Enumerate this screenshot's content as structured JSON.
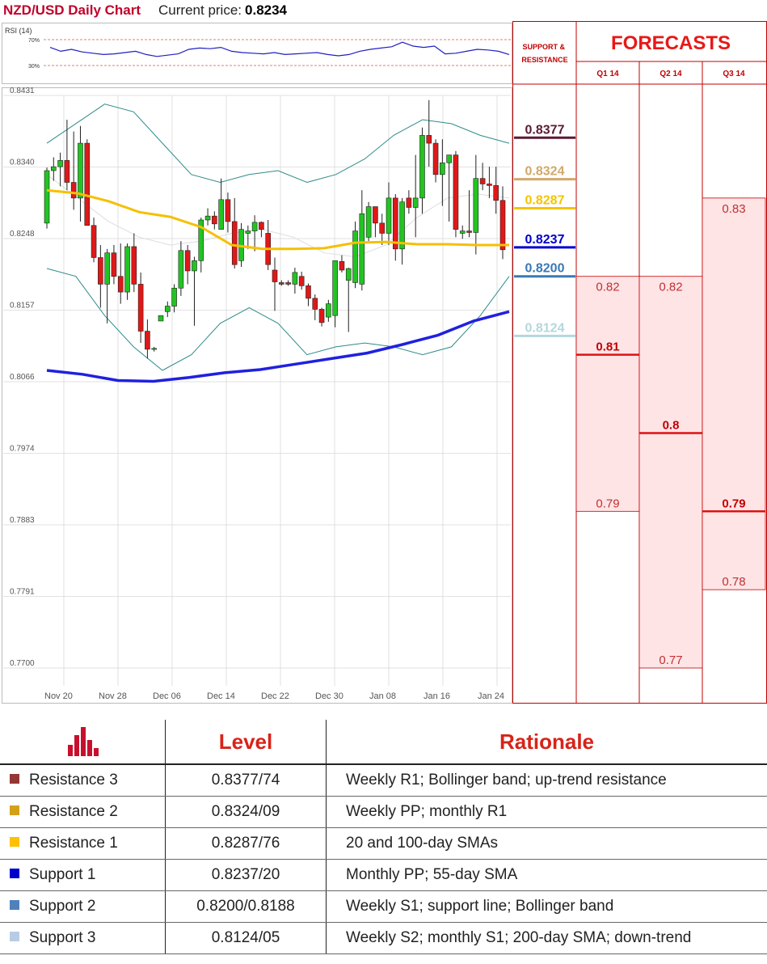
{
  "header": {
    "title": "NZD/USD Daily Chart",
    "price_label": "Current price:",
    "price_value": "0.8234"
  },
  "rsi": {
    "label": "RSI (14)",
    "upper_label": "70%",
    "lower_label": "30%"
  },
  "forecasts": {
    "title": "FORECASTS",
    "sr_label": "SUPPORT & RESISTANCE",
    "quarters": [
      "Q1 14",
      "Q2 14",
      "Q3 14"
    ]
  },
  "levels_table": {
    "icon": "bar-chart-icon",
    "headers": {
      "level": "Level",
      "rationale": "Rationale"
    },
    "rows": [
      {
        "name": "Resistance 3",
        "level": "0.8377/74",
        "rationale": "Weekly R1; Bollinger band; up-trend resistance",
        "color": "#943634"
      },
      {
        "name": "Resistance 2",
        "level": "0.8324/09",
        "rationale": "Weekly PP; monthly R1",
        "color": "#d4a017"
      },
      {
        "name": "Resistance 1",
        "level": "0.8287/76",
        "rationale": "20 and 100-day SMAs",
        "color": "#ffc000"
      },
      {
        "name": "Support 1",
        "level": "0.8237/20",
        "rationale": "Monthly PP; 55-day SMA",
        "color": "#0000cc"
      },
      {
        "name": "Support 2",
        "level": "0.8200/0.8188",
        "rationale": "Weekly S1; support line; Bollinger band",
        "color": "#4f81bd"
      },
      {
        "name": "Support 3",
        "level": "0.8124/05",
        "rationale": "Weekly S2; monthly S1; 200-day SMA; down-trend",
        "color": "#b8cce4"
      }
    ]
  },
  "chart_data": [
    {
      "type": "candlestick",
      "title": "NZD/USD Daily Chart",
      "ylim": [
        0.77,
        0.8431
      ],
      "yticks": [
        "0.8431",
        "0.8340",
        "0.8248",
        "0.8157",
        "0.8066",
        "0.7974",
        "0.7883",
        "0.7791",
        "0.7700"
      ],
      "xticks": [
        "Nov 20",
        "Nov 28",
        "Dec 06",
        "Dec 14",
        "Dec 22",
        "Dec 30",
        "Jan 08",
        "Jan 16",
        "Jan 24"
      ],
      "grid": true,
      "candles": [
        [
          0.8268,
          0.8339,
          0.8261,
          0.8335
        ],
        [
          0.8335,
          0.8352,
          0.8322,
          0.834
        ],
        [
          0.834,
          0.8358,
          0.8315,
          0.8348
        ],
        [
          0.8348,
          0.84,
          0.831,
          0.832
        ],
        [
          0.832,
          0.8385,
          0.8285,
          0.83
        ],
        [
          0.83,
          0.8392,
          0.827,
          0.837
        ],
        [
          0.837,
          0.8375,
          0.827,
          0.8265
        ],
        [
          0.8265,
          0.8275,
          0.8218,
          0.8224
        ],
        [
          0.8224,
          0.824,
          0.816,
          0.819
        ],
        [
          0.819,
          0.8235,
          0.814,
          0.823
        ],
        [
          0.823,
          0.824,
          0.819,
          0.82
        ],
        [
          0.82,
          0.8242,
          0.8165,
          0.818
        ],
        [
          0.818,
          0.8242,
          0.817,
          0.8238
        ],
        [
          0.8238,
          0.8255,
          0.818,
          0.819
        ],
        [
          0.819,
          0.8205,
          0.8115,
          0.813
        ],
        [
          0.813,
          0.8145,
          0.8095,
          0.8107
        ],
        [
          0.8107,
          0.811,
          0.8104,
          0.8108
        ],
        [
          0.8143,
          0.815,
          0.8143,
          0.815
        ],
        [
          0.8155,
          0.8168,
          0.8148,
          0.8162
        ],
        [
          0.8162,
          0.819,
          0.8154,
          0.8185
        ],
        [
          0.8185,
          0.8245,
          0.8175,
          0.8233
        ],
        [
          0.8233,
          0.824,
          0.819,
          0.8207
        ],
        [
          0.8207,
          0.8225,
          0.8137,
          0.822
        ],
        [
          0.822,
          0.8275,
          0.8205,
          0.8272
        ],
        [
          0.8272,
          0.8287,
          0.8265,
          0.8277
        ],
        [
          0.8277,
          0.8283,
          0.826,
          0.8267
        ],
        [
          0.826,
          0.8325,
          0.826,
          0.8298
        ],
        [
          0.8298,
          0.8307,
          0.8256,
          0.827
        ],
        [
          0.827,
          0.83,
          0.821,
          0.8215
        ],
        [
          0.822,
          0.8268,
          0.8212,
          0.826
        ],
        [
          0.8255,
          0.8265,
          0.8235,
          0.8258
        ],
        [
          0.8258,
          0.8278,
          0.8232,
          0.8269
        ],
        [
          0.8269,
          0.827,
          0.825,
          0.826
        ],
        [
          0.8255,
          0.8272,
          0.8208,
          0.8215
        ],
        [
          0.8208,
          0.8224,
          0.8156,
          0.8193
        ],
        [
          0.8192,
          0.8195,
          0.8188,
          0.819
        ],
        [
          0.8192,
          0.8195,
          0.8188,
          0.819
        ],
        [
          0.819,
          0.8211,
          0.8178,
          0.8205
        ],
        [
          0.82,
          0.8206,
          0.8183,
          0.8188
        ],
        [
          0.8188,
          0.8191,
          0.8162,
          0.8172
        ],
        [
          0.8172,
          0.8177,
          0.8144,
          0.8158
        ],
        [
          0.8158,
          0.816,
          0.8136,
          0.8141
        ],
        [
          0.8148,
          0.817,
          0.8142,
          0.8165
        ],
        [
          0.815,
          0.822,
          0.8135,
          0.822
        ],
        [
          0.8219,
          0.8227,
          0.8205,
          0.8208
        ],
        [
          0.8195,
          0.8211,
          0.8129,
          0.821
        ],
        [
          0.8192,
          0.827,
          0.8185,
          0.8258
        ],
        [
          0.819,
          0.831,
          0.8182,
          0.828
        ],
        [
          0.825,
          0.8295,
          0.8245,
          0.8289
        ],
        [
          0.8289,
          0.8289,
          0.825,
          0.8268
        ],
        [
          0.8268,
          0.828,
          0.824,
          0.8255
        ],
        [
          0.8255,
          0.832,
          0.824,
          0.83
        ],
        [
          0.83,
          0.8305,
          0.822,
          0.8235
        ],
        [
          0.8235,
          0.83,
          0.8215,
          0.8295
        ],
        [
          0.83,
          0.831,
          0.828,
          0.8288
        ],
        [
          0.8288,
          0.8355,
          0.825,
          0.83
        ],
        [
          0.83,
          0.839,
          0.828,
          0.838
        ],
        [
          0.838,
          0.8425,
          0.834,
          0.837
        ],
        [
          0.837,
          0.8375,
          0.832,
          0.833
        ],
        [
          0.833,
          0.8375,
          0.829,
          0.8345
        ],
        [
          0.8345,
          0.835,
          0.827,
          0.8355
        ],
        [
          0.8355,
          0.836,
          0.825,
          0.826
        ],
        [
          0.8255,
          0.8265,
          0.8248,
          0.8258
        ],
        [
          0.8258,
          0.831,
          0.825,
          0.8256
        ],
        [
          0.8256,
          0.8355,
          0.8228,
          0.8325
        ],
        [
          0.8325,
          0.8345,
          0.831,
          0.8318
        ],
        [
          0.8318,
          0.834,
          0.83,
          0.8316
        ],
        [
          0.8316,
          0.834,
          0.828,
          0.8297
        ],
        [
          0.8297,
          0.8315,
          0.8222,
          0.8234
        ]
      ],
      "sma_yellow": [
        0.831,
        0.8306,
        0.8296,
        0.8282,
        0.8276,
        0.8263,
        0.824,
        0.8235,
        0.8235,
        0.8236,
        0.8243,
        0.8244,
        0.8241,
        0.8241,
        0.824,
        0.824
      ],
      "sma_blue": [
        0.808,
        0.8075,
        0.8067,
        0.8066,
        0.8071,
        0.8077,
        0.8081,
        0.8088,
        0.8095,
        0.8102,
        0.8113,
        0.8125,
        0.8143,
        0.8155
      ],
      "bollinger_upper": [
        0.837,
        0.8395,
        0.842,
        0.841,
        0.837,
        0.833,
        0.832,
        0.833,
        0.8335,
        0.832,
        0.833,
        0.835,
        0.838,
        0.84,
        0.8395,
        0.838,
        0.837
      ],
      "bollinger_lower": [
        0.821,
        0.82,
        0.815,
        0.811,
        0.808,
        0.81,
        0.814,
        0.816,
        0.814,
        0.81,
        0.811,
        0.8115,
        0.811,
        0.81,
        0.811,
        0.815,
        0.82
      ],
      "bollinger_mid": [
        0.833,
        0.83,
        0.827,
        0.825,
        0.824,
        0.8245,
        0.8255,
        0.826,
        0.825,
        0.823,
        0.8225,
        0.824,
        0.8275,
        0.83,
        0.8305,
        0.83
      ]
    },
    {
      "type": "line",
      "title": "RSI (14)",
      "ylim": [
        20,
        80
      ],
      "reference_lines": [
        70,
        30
      ],
      "values": [
        58,
        52,
        55,
        51,
        49,
        47,
        48,
        50,
        52,
        47,
        44,
        46,
        48,
        55,
        57,
        56,
        58,
        52,
        50,
        49,
        48,
        50,
        47,
        48,
        49,
        50,
        47,
        45,
        47,
        52,
        55,
        57,
        59,
        66,
        60,
        58,
        60,
        48,
        49,
        52,
        55,
        54,
        52,
        47
      ]
    },
    {
      "type": "step-columns",
      "title": "FORECASTS",
      "ylim": [
        0.77,
        0.8431
      ],
      "sr_levels": [
        {
          "label": "0.8377",
          "value": 0.8377,
          "color": "#5b1a35"
        },
        {
          "label": "0.8324",
          "value": 0.8324,
          "color": "#d2a86a"
        },
        {
          "label": "0.8287",
          "value": 0.8287,
          "color": "#f5c400"
        },
        {
          "label": "0.8237",
          "value": 0.8237,
          "color": "#0000cc"
        },
        {
          "label": "0.8200",
          "value": 0.82,
          "color": "#3a78b5"
        },
        {
          "label": "0.8124",
          "value": 0.8124,
          "color": "#b4d7de"
        }
      ],
      "columns": [
        {
          "quarter": "Q1 14",
          "high": 0.82,
          "high_label": "0.82",
          "median": 0.81,
          "median_label": "0.81",
          "low": 0.79,
          "low_label": "0.79"
        },
        {
          "quarter": "Q2 14",
          "high": 0.82,
          "high_label": "0.82",
          "median": 0.8,
          "median_label": "0.8",
          "low": 0.77,
          "low_label": "0.77"
        },
        {
          "quarter": "Q3 14",
          "high": 0.83,
          "high_label": "0.83",
          "median": 0.79,
          "median_label": "0.79",
          "low": 0.78,
          "low_label": "0.78"
        }
      ]
    }
  ]
}
